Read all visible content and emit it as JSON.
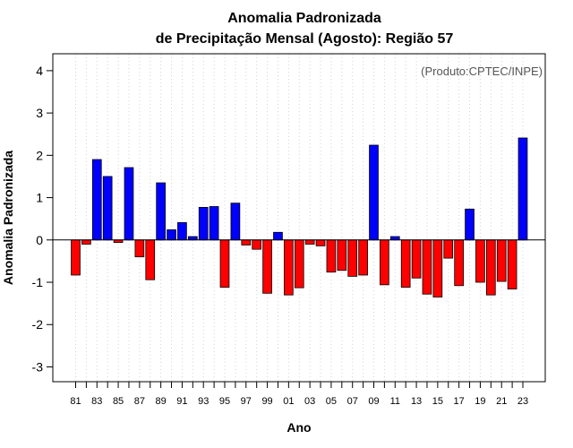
{
  "chart_data": {
    "type": "bar",
    "title": "Anomalia Padronizada",
    "subtitle": "de Precipitação Mensal (Agosto): Região 57",
    "xlabel": "Ano",
    "ylabel": "Anomalia Padronizada",
    "credit": "(Produto:CPTEC/INPE)",
    "ylim": [
      -3.35,
      4.4
    ],
    "yticks": [
      "-3",
      "-2",
      "-1",
      "0",
      "1",
      "2",
      "3",
      "4"
    ],
    "grid": "vertical dotted",
    "colors": {
      "positive": "#0000ff",
      "negative": "#ff0000",
      "grid": "#d3d3d3"
    },
    "categories": [
      "81",
      "82",
      "83",
      "84",
      "85",
      "86",
      "87",
      "88",
      "89",
      "90",
      "91",
      "92",
      "93",
      "94",
      "95",
      "96",
      "97",
      "98",
      "99",
      "00",
      "01",
      "02",
      "03",
      "04",
      "05",
      "06",
      "07",
      "08",
      "09",
      "10",
      "11",
      "12",
      "13",
      "14",
      "15",
      "16",
      "17",
      "18",
      "19",
      "20",
      "21",
      "22",
      "23"
    ],
    "tick_labels": [
      "81",
      "",
      "83",
      "",
      "85",
      "",
      "87",
      "",
      "89",
      "",
      "91",
      "",
      "93",
      "",
      "95",
      "",
      "97",
      "",
      "99",
      "",
      "01",
      "",
      "03",
      "",
      "05",
      "",
      "07",
      "",
      "09",
      "",
      "11",
      "",
      "13",
      "",
      "15",
      "",
      "17",
      "",
      "19",
      "",
      "21",
      "",
      "23"
    ],
    "values": [
      -0.83,
      -0.1,
      1.9,
      1.5,
      -0.06,
      1.71,
      -0.4,
      -0.94,
      1.35,
      0.24,
      0.41,
      0.08,
      0.77,
      0.79,
      -1.12,
      0.87,
      -0.12,
      -0.22,
      -1.26,
      0.18,
      -1.3,
      -1.13,
      -0.1,
      -0.14,
      -0.76,
      -0.72,
      -0.86,
      -0.83,
      2.24,
      -1.06,
      0.08,
      -1.12,
      -0.9,
      -1.28,
      -1.35,
      -0.43,
      -1.08,
      0.73,
      -1.0,
      -1.3,
      -0.98,
      -1.16,
      2.41
    ]
  }
}
